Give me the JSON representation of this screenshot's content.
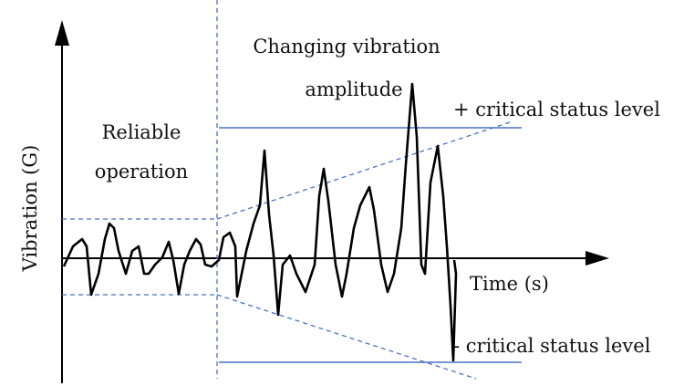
{
  "axes": {
    "y_label": "Vibration (G)",
    "x_label": "Time (s)"
  },
  "regions": [
    {
      "label": [
        "Reliable",
        "operation"
      ]
    },
    {
      "label": [
        "Changing vibration",
        "amplitude"
      ]
    }
  ],
  "levels": {
    "upper": "+ critical status level",
    "lower": "- critical status level"
  }
}
